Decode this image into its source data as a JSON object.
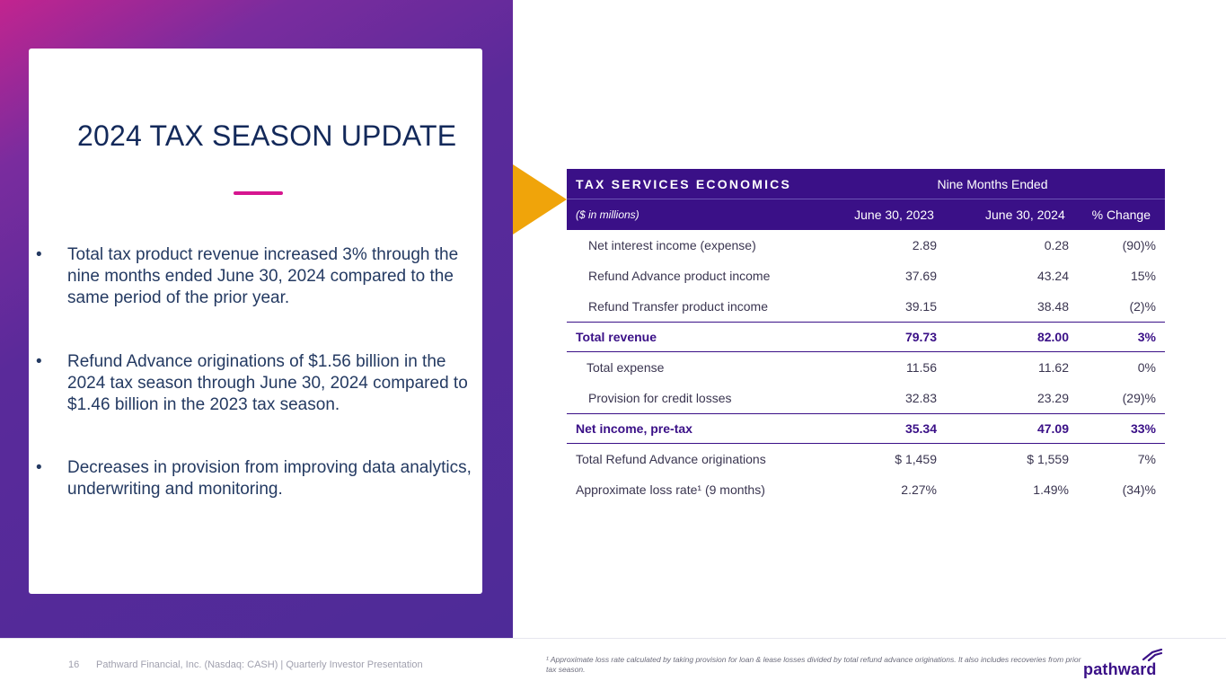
{
  "title": "2024 TAX SEASON UPDATE",
  "bullets": [
    "Total tax product revenue increased 3% through the nine months ended June 30, 2024 compared to the same period of the prior year.",
    "Refund Advance originations of $1.56 billion in the 2024 tax season through June 30, 2024 compared to $1.46 billion in the 2023 tax season.",
    "Decreases in provision from improving data analytics, underwriting and monitoring."
  ],
  "bullet_symbol": "•",
  "table": {
    "title": "TAX SERVICES ECONOMICS",
    "group_header": "Nine Months Ended",
    "units": "($ in millions)",
    "col1": "June 30, 2023",
    "col2": "June 30, 2024",
    "col3": "% Change",
    "rows": [
      {
        "label": "Net interest income (expense)",
        "v1": "2.89",
        "v2": "0.28",
        "v3": "(90)%"
      },
      {
        "label": "Refund Advance product income",
        "v1": "37.69",
        "v2": "43.24",
        "v3": "15%"
      },
      {
        "label": "Refund Transfer product income",
        "v1": "39.15",
        "v2": "38.48",
        "v3": "(2)%"
      },
      {
        "label": "Total revenue",
        "v1": "79.73",
        "v2": "82.00",
        "v3": "3%"
      },
      {
        "label": "Total expense",
        "v1": "11.56",
        "v2": "11.62",
        "v3": "0%"
      },
      {
        "label": "Provision for credit losses",
        "v1": "32.83",
        "v2": "23.29",
        "v3": "(29)%"
      },
      {
        "label": "Net income, pre-tax",
        "v1": "35.34",
        "v2": "47.09",
        "v3": "33%"
      },
      {
        "label": "Total Refund Advance originations",
        "v1": "$  1,459",
        "v2": "$  1,559",
        "v3": "7%"
      },
      {
        "label": "Approximate loss rate¹ (9 months)",
        "v1": "2.27%",
        "v2": "1.49%",
        "v3": "(34)%"
      }
    ]
  },
  "footer": {
    "page_number": "16",
    "text": "Pathward Financial, Inc. (Nasdaq: CASH) | Quarterly Investor Presentation",
    "footnote": "¹ Approximate loss rate calculated by taking provision for loan & lease losses divided by total refund advance originations. It also includes recoveries from prior tax season.",
    "logo": "pathward"
  },
  "colors": {
    "accent_magenta": "#d6168f",
    "table_header": "#3a1087",
    "arrow": "#f0a40a",
    "title": "#13295a"
  }
}
